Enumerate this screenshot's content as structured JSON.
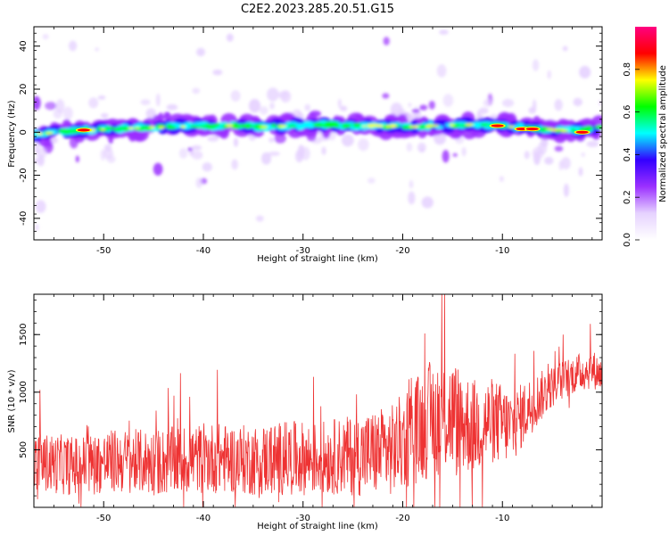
{
  "title": "C2E2.2023.285.20.51.G15",
  "chart_data": [
    {
      "type": "heatmap",
      "xlabel": "Height of straight line (km)",
      "ylabel": "Frequency (Hz)",
      "xlim": [
        -57,
        0
      ],
      "ylim": [
        -50,
        49
      ],
      "xticks": [
        -50,
        -40,
        -30,
        -20,
        -10
      ],
      "xtick_labels": [
        "-50",
        "-40",
        "-30",
        "-20",
        "-10"
      ],
      "yticks": [
        40,
        20,
        0,
        -20,
        -40
      ],
      "ytick_labels": [
        "40",
        "20",
        "0",
        "-20",
        "-40"
      ],
      "colorbar": {
        "label": "Normalized spectral amplitude",
        "range": [
          0.0,
          1.0
        ],
        "ticks": [
          0.0,
          0.2,
          0.4,
          0.6,
          0.8
        ],
        "tick_labels": [
          "0.0",
          "0.2",
          "0.4",
          "0.6",
          "0.8"
        ],
        "colormap": [
          "#ffffff",
          "#e6d2ff",
          "#9b30ff",
          "#3300ff",
          "#00ffff",
          "#00ff00",
          "#ffff00",
          "#ff0000",
          "#ff0080"
        ]
      },
      "ridge": {
        "x": [
          -57,
          -55,
          -52,
          -49,
          -46,
          -43,
          -40,
          -37,
          -34,
          -31,
          -28,
          -25,
          -22,
          -19,
          -16,
          -13,
          -10,
          -8,
          -6,
          -4,
          -2,
          0
        ],
        "y": [
          -1,
          0,
          1,
          1.5,
          2,
          2.5,
          3,
          3,
          2.5,
          3,
          3.5,
          3,
          3,
          2.5,
          3,
          3.5,
          3,
          2,
          1.5,
          1,
          1,
          3
        ]
      },
      "strong_peaks": [
        {
          "x": -52,
          "y": 1
        },
        {
          "x": -10.5,
          "y": 3
        },
        {
          "x": -8,
          "y": 1.5
        },
        {
          "x": -7,
          "y": 1.5
        },
        {
          "x": -2,
          "y": 0
        }
      ]
    },
    {
      "type": "line",
      "xlabel": "Height of straight line (km)",
      "ylabel": "SNR (10 * v/v)",
      "xlim": [
        -57,
        0
      ],
      "ylim": [
        0,
        1850
      ],
      "xticks": [
        -50,
        -40,
        -30,
        -20,
        -10
      ],
      "xtick_labels": [
        "-50",
        "-40",
        "-30",
        "-20",
        "-10"
      ],
      "yticks": [
        500,
        1000,
        1500
      ],
      "ytick_labels": [
        "500",
        "1000",
        "1500"
      ],
      "series": [
        {
          "color": "#ee3333",
          "x": [
            -57,
            -55,
            -53,
            -51,
            -49,
            -47,
            -45,
            -43,
            -41,
            -39,
            -37,
            -35,
            -33,
            -31,
            -29,
            -27,
            -25,
            -23,
            -21,
            -19,
            -17,
            -15,
            -13,
            -11,
            -9,
            -7,
            -5,
            -3,
            -1,
            0
          ],
          "y": [
            400,
            380,
            360,
            380,
            400,
            400,
            390,
            400,
            420,
            430,
            420,
            410,
            420,
            430,
            420,
            440,
            450,
            470,
            500,
            650,
            780,
            800,
            700,
            750,
            700,
            900,
            1050,
            1150,
            1200,
            1150
          ],
          "amplitude": [
            250,
            260,
            260,
            270,
            280,
            280,
            290,
            300,
            300,
            310,
            300,
            310,
            320,
            320,
            320,
            330,
            350,
            380,
            400,
            460,
            520,
            500,
            420,
            380,
            320,
            250,
            180,
            170,
            170,
            150
          ]
        }
      ]
    }
  ]
}
